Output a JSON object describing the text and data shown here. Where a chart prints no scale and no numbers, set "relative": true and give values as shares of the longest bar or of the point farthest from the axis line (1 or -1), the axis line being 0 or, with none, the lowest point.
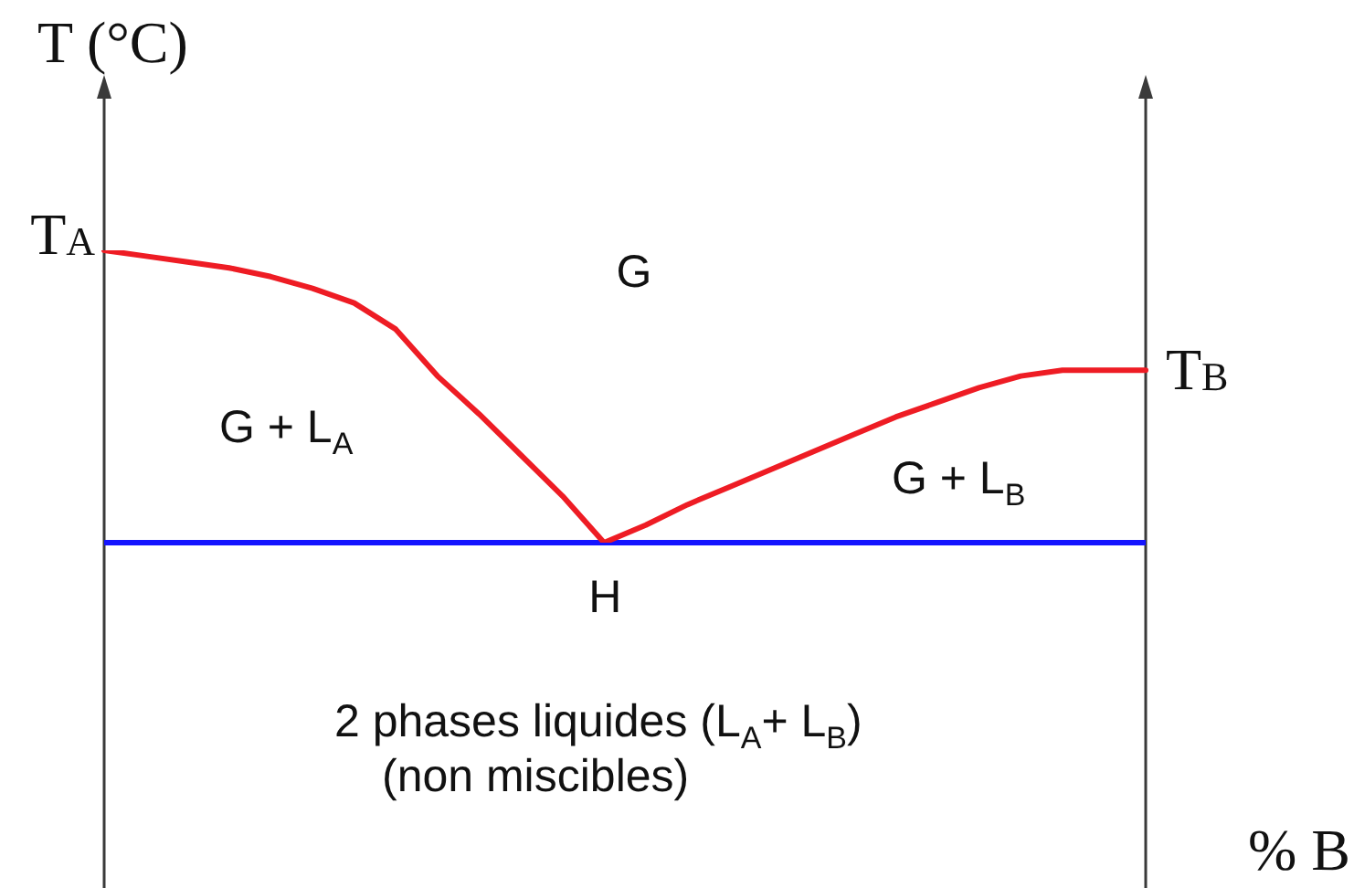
{
  "chart_data": {
    "type": "line",
    "ylabel": "T (°C)",
    "relative": true,
    "marker": "none",
    "line_style": "solid",
    "categories": [
      null,
      null,
      null,
      null,
      null,
      null,
      null,
      null,
      null,
      null,
      null,
      null,
      null,
      null,
      null,
      null,
      null,
      null,
      null,
      null,
      null,
      null,
      null,
      null,
      null,
      null
    ],
    "series": [
      {
        "color": "#ee1c24",
        "values": [
          1.0,
          0.98,
          0.96,
          0.94,
          0.91,
          0.87,
          0.82,
          0.73,
          0.57,
          0.44,
          0.3,
          0.16,
          0,
          0.06,
          0.13,
          0.19,
          0.25,
          0.31,
          0.37,
          0.43,
          0.48,
          0.53,
          0.57,
          0.59,
          0.59,
          0.59
        ]
      }
    ],
    "ref_lines": [
      {
        "axis": "y",
        "value": 0,
        "color": "#1414ff"
      }
    ],
    "annotations": [
      "T$_{A}$",
      "T$_{B}$",
      {
        "text": "H",
        "y": 0
      },
      "G",
      "G + L$_{A}$",
      "G + L$_{B}$",
      "2 phases liquides (L$_{A}$+ L$_{B}$)",
      "(non miscibles)",
      "% B"
    ]
  }
}
